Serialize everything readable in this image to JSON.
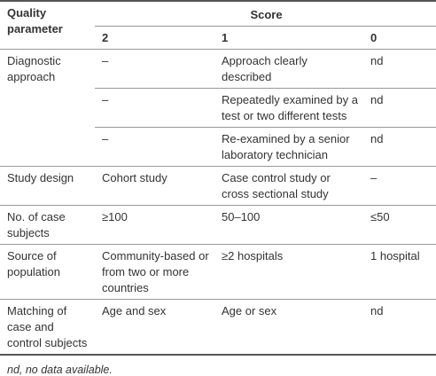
{
  "table": {
    "header": {
      "parameter": "Quality parameter",
      "score": "Score",
      "scores": [
        "2",
        "1",
        "0"
      ]
    },
    "rows": [
      {
        "parameter": "Diagnostic approach",
        "subrows": [
          [
            "–",
            "Approach clearly described",
            "nd"
          ],
          [
            "–",
            "Repeatedly examined by a test or two different tests",
            "nd"
          ],
          [
            "–",
            "Re-examined by a senior laboratory technician",
            "nd"
          ]
        ]
      },
      {
        "parameter": "Study design",
        "subrows": [
          [
            "Cohort study",
            "Case control study or cross sectional study",
            "–"
          ]
        ]
      },
      {
        "parameter": "No. of case subjects",
        "subrows": [
          [
            "≥100",
            "50–100",
            "≤50"
          ]
        ]
      },
      {
        "parameter": "Source of population",
        "subrows": [
          [
            "Community-based or from two or more countries",
            "≥2 hospitals",
            "1 hospital"
          ]
        ]
      },
      {
        "parameter": "Matching of case and control subjects",
        "subrows": [
          [
            "Age and sex",
            "Age or sex",
            "nd"
          ]
        ]
      }
    ]
  },
  "footnote": "nd, no data available."
}
